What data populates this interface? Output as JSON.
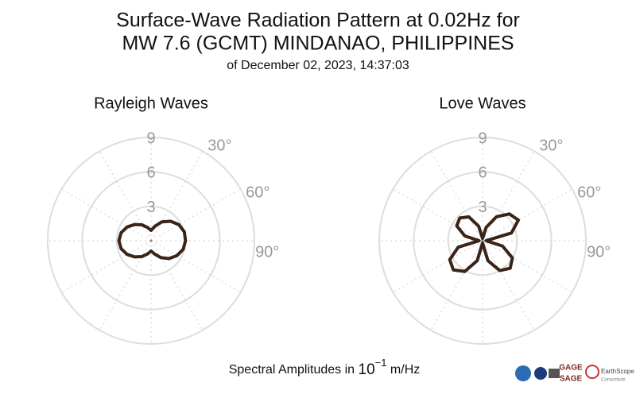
{
  "page": {
    "title_lines": [
      "Surface-Wave Radiation Pattern at 0.02Hz for",
      "MW 7.6 (GCMT) MINDANAO, PHILIPPINES"
    ],
    "subtitle": "of December 02, 2023, 14:37:03",
    "footnote": {
      "text": "Spectral Amplitudes in",
      "base": "10",
      "exponent": "−1",
      "unit": "m/Hz"
    },
    "logos": {
      "gage": "GAGE",
      "sage": "SAGE",
      "earthscope": "EarthScope",
      "consortium": "Consortium"
    }
  },
  "chart_data": [
    {
      "type": "polar",
      "title": "Rayleigh Waves",
      "color": "#3a2418",
      "theta": [
        0,
        15,
        30,
        45,
        60,
        75,
        90,
        105,
        120,
        135,
        150,
        165,
        180,
        195,
        210,
        225,
        240,
        255,
        270,
        285,
        300,
        315,
        330,
        345
      ],
      "r": [
        0.9,
        1.3,
        1.9,
        2.4,
        2.8,
        3.0,
        3.0,
        2.9,
        2.6,
        2.2,
        1.7,
        1.2,
        0.9,
        1.2,
        1.6,
        2.0,
        2.4,
        2.7,
        2.8,
        2.7,
        2.4,
        2.0,
        1.6,
        1.2
      ],
      "rlim": [
        0,
        9
      ],
      "rticks": [
        3,
        6,
        9
      ],
      "theta_grid": [
        0,
        30,
        60,
        90,
        120,
        150,
        180,
        210,
        240,
        270,
        300,
        330
      ],
      "thetaticks": [
        {
          "value": 30,
          "label": "30°"
        },
        {
          "value": 60,
          "label": "60°"
        },
        {
          "value": 90,
          "label": "90°"
        }
      ]
    },
    {
      "type": "polar",
      "title": "Love Waves",
      "color": "#3a2418",
      "theta": [
        0,
        15,
        30,
        45,
        60,
        75,
        90,
        105,
        120,
        135,
        150,
        165,
        180,
        195,
        210,
        225,
        240,
        255,
        270,
        285,
        300,
        315,
        330,
        345
      ],
      "r": [
        0.2,
        1.2,
        2.4,
        3.3,
        3.6,
        2.6,
        0.3,
        1.8,
        3.0,
        3.4,
        3.0,
        1.8,
        0.2,
        1.8,
        3.1,
        3.6,
        3.3,
        2.2,
        0.3,
        1.6,
        2.6,
        2.8,
        2.4,
        1.3
      ],
      "rlim": [
        0,
        9
      ],
      "rticks": [
        3,
        6,
        9
      ],
      "theta_grid": [
        0,
        30,
        60,
        90,
        120,
        150,
        180,
        210,
        240,
        270,
        300,
        330
      ],
      "thetaticks": [
        {
          "value": 30,
          "label": "30°"
        },
        {
          "value": 60,
          "label": "60°"
        },
        {
          "value": 90,
          "label": "90°"
        }
      ]
    }
  ]
}
